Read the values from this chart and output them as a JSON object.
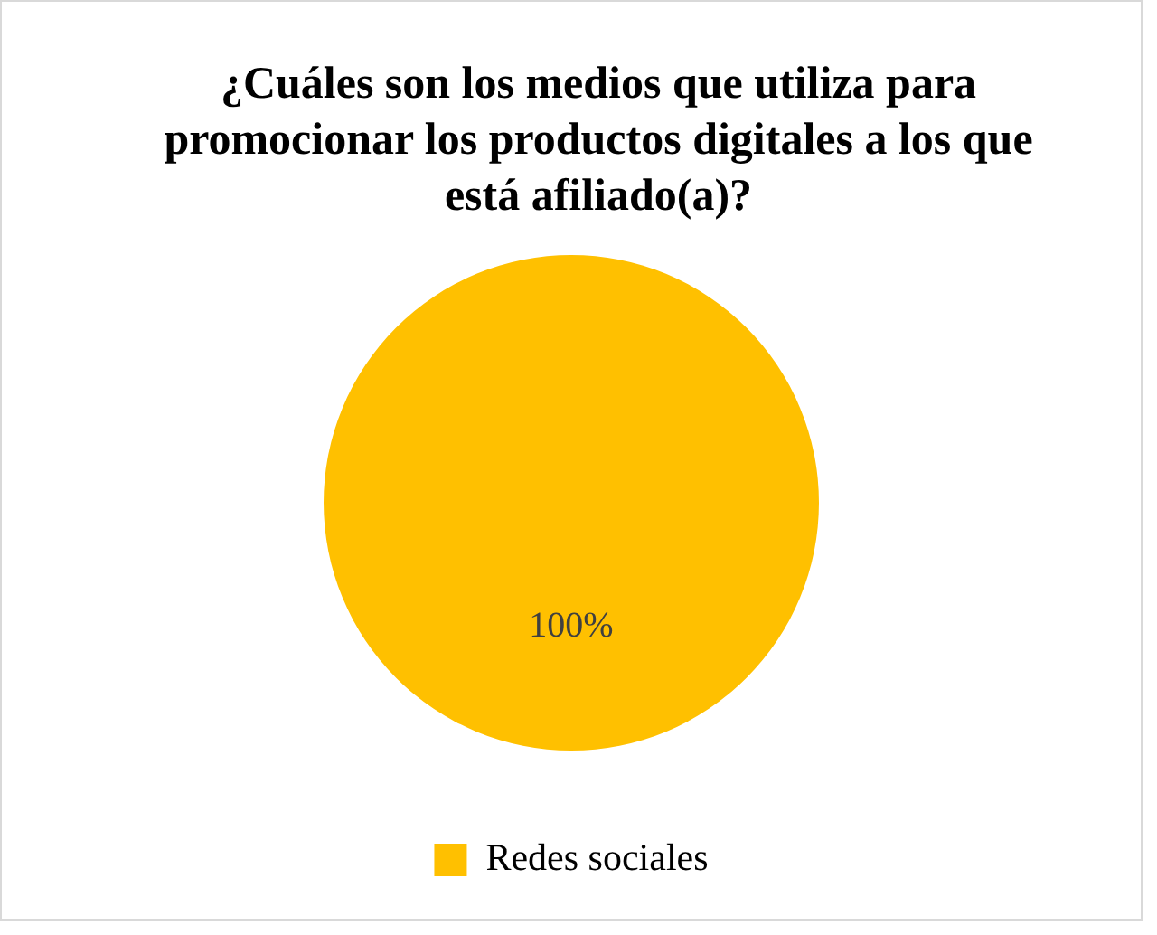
{
  "chart_data": {
    "type": "pie",
    "title": "¿Cuáles son los medios que utiliza para promocionar los productos digitales a los que está afiliado(a)?",
    "categories": [
      "Redes sociales"
    ],
    "values": [
      100
    ],
    "colors": [
      "#ffc000"
    ],
    "value_labels": [
      "100%"
    ],
    "legend": "bottom"
  }
}
